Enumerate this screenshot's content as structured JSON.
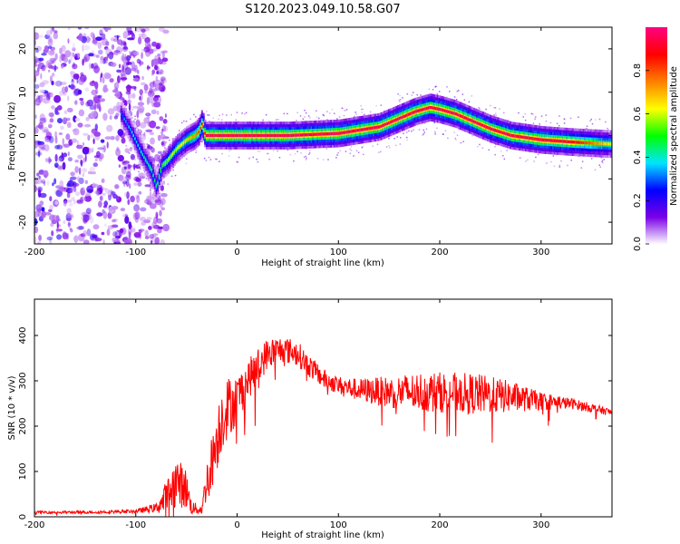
{
  "figure": {
    "title": "S120.2023.049.10.58.G07"
  },
  "chart_data": [
    {
      "type": "heatmap",
      "xlabel": "Height of straight line (km)",
      "ylabel": "Frequency (Hz)",
      "xlim": [
        -200,
        370
      ],
      "ylim": [
        -25,
        25
      ],
      "x_ticks": [
        -200,
        -100,
        0,
        100,
        200,
        300
      ],
      "y_ticks": [
        -20,
        -10,
        0,
        10,
        20
      ],
      "colorbar": {
        "label": "Normalized spectral amplitude",
        "range": [
          0,
          1
        ],
        "ticks": [
          0.0,
          0.2,
          0.4,
          0.6,
          0.8
        ],
        "colors": [
          "#ffffff",
          "#7a00e6",
          "#0000ff",
          "#00e5ff",
          "#00ff00",
          "#ffff00",
          "#ff8000",
          "#ff0000",
          "#ff0080"
        ]
      },
      "ridge": {
        "x": [
          -115,
          -105,
          -95,
          -85,
          -80,
          -75,
          -70,
          -60,
          -50,
          -42,
          -38,
          -35,
          -32,
          0,
          50,
          100,
          140,
          160,
          175,
          190,
          200,
          215,
          230,
          250,
          270,
          300,
          330,
          370
        ],
        "frequency": [
          5,
          1,
          -4,
          -8,
          -12,
          -7,
          -6,
          -3,
          -1,
          0,
          1,
          3,
          0,
          0,
          0,
          0.5,
          2,
          4,
          5.5,
          6.5,
          6,
          5,
          3.5,
          1.5,
          0,
          -1,
          -1.5,
          -2
        ],
        "peak": [
          0.3,
          0.35,
          0.4,
          0.45,
          0.45,
          0.5,
          0.55,
          0.6,
          0.65,
          0.75,
          0.8,
          0.85,
          0.95,
          0.95,
          0.95,
          0.95,
          0.95,
          0.95,
          0.95,
          0.95,
          0.95,
          0.95,
          0.95,
          0.95,
          0.95,
          0.95,
          0.9,
          0.6
        ]
      },
      "noise_x_range": [
        -200,
        -70
      ]
    },
    {
      "type": "line",
      "xlabel": "Height of straight line (km)",
      "ylabel": "SNR (10 * v/v)",
      "xlim": [
        -200,
        370
      ],
      "ylim": [
        0,
        480
      ],
      "x_ticks": [
        -200,
        -100,
        0,
        100,
        200,
        300
      ],
      "y_ticks": [
        0,
        100,
        200,
        300,
        400
      ],
      "series": [
        {
          "color": "#ff0000",
          "x": [
            -200,
            -150,
            -100,
            -80,
            -70,
            -60,
            -50,
            -45,
            -35,
            -30,
            -25,
            -20,
            -15,
            -10,
            0,
            10,
            20,
            30,
            45,
            60,
            70,
            85,
            100,
            120,
            150,
            180,
            210,
            240,
            270,
            300,
            330,
            350,
            370
          ],
          "y": [
            10,
            10,
            12,
            20,
            40,
            80,
            60,
            20,
            15,
            80,
            120,
            170,
            220,
            240,
            260,
            300,
            330,
            360,
            370,
            360,
            335,
            305,
            290,
            280,
            275,
            275,
            275,
            270,
            265,
            255,
            250,
            240,
            230
          ],
          "noise_amplitude": [
            3,
            3,
            4,
            10,
            40,
            55,
            45,
            15,
            10,
            45,
            60,
            70,
            75,
            70,
            55,
            45,
            40,
            35,
            30,
            28,
            25,
            22,
            20,
            25,
            35,
            45,
            45,
            45,
            35,
            20,
            12,
            10,
            8
          ]
        }
      ]
    }
  ]
}
